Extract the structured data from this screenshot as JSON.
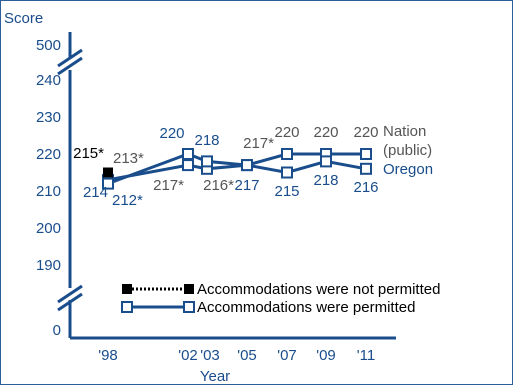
{
  "chart_data": {
    "type": "line",
    "ylabel": "Score",
    "xlabel": "Year",
    "x_ticks": [
      "'98",
      "'02",
      "'03",
      "'05",
      "'07",
      "'09",
      "'11"
    ],
    "y_ticks": [
      "0",
      "190",
      "200",
      "210",
      "220",
      "230",
      "240",
      "500"
    ],
    "y_axis_break": true,
    "ylim_visible": [
      190,
      240
    ],
    "series": [
      {
        "name": "Nation (public)",
        "name_lines": [
          "Nation",
          "(public)"
        ],
        "color": "#555555",
        "accommodations_not_permitted": [
          {
            "x": "'98",
            "y": 215,
            "label": "215*"
          }
        ],
        "accommodations_permitted": [
          {
            "x": "'98",
            "y": 213,
            "label": "213*"
          },
          {
            "x": "'02",
            "y": 217,
            "label": "217*"
          },
          {
            "x": "'03",
            "y": 216,
            "label": "216*"
          },
          {
            "x": "'05",
            "y": 217,
            "label": "217*"
          },
          {
            "x": "'07",
            "y": 220,
            "label": "220"
          },
          {
            "x": "'09",
            "y": 220,
            "label": "220"
          },
          {
            "x": "'11",
            "y": 220,
            "label": "220"
          }
        ]
      },
      {
        "name": "Oregon",
        "color": "#1a4d8c",
        "accommodations_permitted": [
          {
            "x": "'98",
            "y": 212,
            "label": "212*"
          },
          {
            "x": "'02",
            "y": 220,
            "label": "220"
          },
          {
            "x": "'03",
            "y": 218,
            "label": "218"
          },
          {
            "x": "'05",
            "y": 217,
            "label": "217"
          },
          {
            "x": "'07",
            "y": 215,
            "label": "215"
          },
          {
            "x": "'09",
            "y": 218,
            "label": "218"
          },
          {
            "x": "'11",
            "y": 216,
            "label": "216"
          }
        ]
      }
    ],
    "oregon_extra_label_98": "214",
    "legend": [
      {
        "label": "Accommodations were not permitted",
        "style": "dotted-black-filled"
      },
      {
        "label": "Accommodations were permitted",
        "style": "solid-blue-open"
      }
    ],
    "legend_position": "bottom-right",
    "colors": {
      "axis": "#1a4d8c",
      "nation": "#555555",
      "oregon": "#1a4d8c",
      "not_permitted": "#000000"
    }
  }
}
